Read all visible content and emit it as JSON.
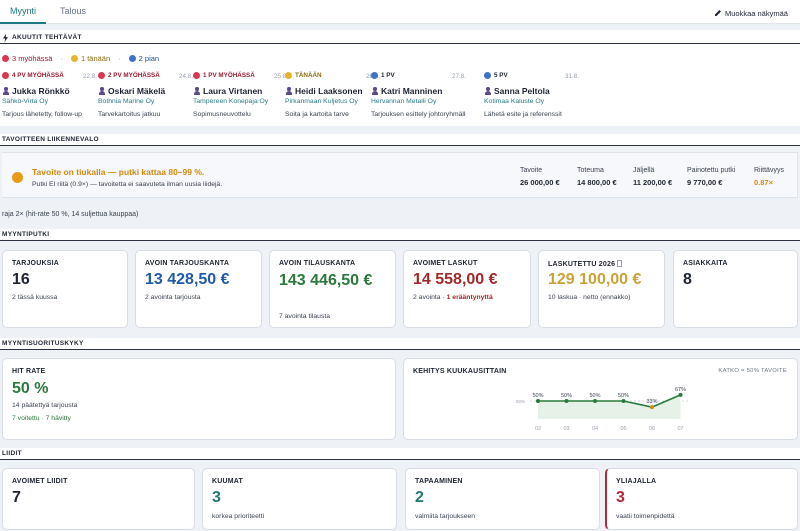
{
  "tabs": [
    {
      "label": "Myynti",
      "active": true
    },
    {
      "label": "Talous",
      "active": false
    }
  ],
  "edit_button": "Muokkaa näkymää",
  "urgent": {
    "title": "AKUUTIT TEHTÄVÄT",
    "legend": [
      {
        "text": "3 myöhässä",
        "color": "#d9364f"
      },
      {
        "text": "1 tänään",
        "color": "#e8b52a"
      },
      {
        "text": "2 pian",
        "color": "#3b73c7"
      }
    ],
    "tasks": [
      {
        "tag": "4 PV MYÖHÄSSÄ",
        "date": "22.8.",
        "name": "Jukka Rönkkö",
        "company": "Sähkö-Virta Oy",
        "note": "Tarjous lähetetty, follow-up",
        "color": "#d9364f",
        "tag_color": "#9a1a2e"
      },
      {
        "tag": "2 PV MYÖHÄSSÄ",
        "date": "24.8.",
        "name": "Oskari Mäkelä",
        "company": "Bothnia Marine Oy",
        "note": "Tarvekartoitus jatkuu",
        "color": "#d9364f",
        "tag_color": "#9a1a2e"
      },
      {
        "tag": "1 PV MYÖHÄSSÄ",
        "date": "25.8.",
        "name": "Laura Virtanen",
        "company": "Tampereen Konepaja Oy",
        "note": "Sopimusneuvottelu",
        "color": "#d9364f",
        "tag_color": "#9a1a2e"
      },
      {
        "tag": "TÄNÄÄN",
        "date": "26.8.",
        "name": "Heidi Laaksonen",
        "company": "Pirkanmaan Kuljetus Oy",
        "note": "Soita ja kartoita tarve",
        "color": "#e8b52a",
        "tag_color": "#8a6a10"
      },
      {
        "tag": "1 PV",
        "date": "27.8.",
        "name": "Katri Manninen",
        "company": "Hervannan Metalli Oy",
        "note": "Tarjouksen esittely johtoryhmälle",
        "color": "#3b73c7",
        "tag_color": "#1d2330"
      },
      {
        "tag": "5 PV",
        "date": "31.8.",
        "name": "Sanna Peltola",
        "company": "Kotimaa Kaluste Oy",
        "note": "Lähetä esite ja referenssit",
        "color": "#3b73c7",
        "tag_color": "#1d2330"
      }
    ]
  },
  "goal": {
    "title": "TAVOITTEEN LIIKENNEVALO",
    "status": "Tavoite on tiukalla — putki kattaa 80–99 %.",
    "detail": "Putki EI riitä (0.9×) — tavoitetta ei saavuteta ilman uusia liidejä.",
    "stats": [
      {
        "label": "Tavoite",
        "value": "26 000,00 €",
        "color": "#1d2330"
      },
      {
        "label": "Toteuma",
        "value": "14 800,00 €",
        "color": "#1d2330"
      },
      {
        "label": "Jäljellä",
        "value": "11 200,00 €",
        "color": "#1d2330"
      },
      {
        "label": "Painotettu putki",
        "value": "9 770,00 €",
        "color": "#1d2330"
      },
      {
        "label": "Riittävyys",
        "value": "0.87×",
        "color": "#d08a10"
      }
    ],
    "footnote": "raja 2× (hit-rate 50 %, 14 suljettua kauppaa)"
  },
  "pipeline": {
    "title": "MYYNTIPUTKI",
    "cards": [
      {
        "label": "TARJOUKSIA",
        "value": "16",
        "sub": "2 tässä kuussa",
        "color": "#1d2330"
      },
      {
        "label": "AVOIN TARJOUSKANTA",
        "value": "13 428,50 €",
        "sub": "2 avointa tarjousta",
        "color": "#1f5aa8"
      },
      {
        "label": "AVOIN TILAUSKANTA",
        "value": "143 446,50 €",
        "sub": "7 avointa tilausta",
        "color": "#2a7a3c"
      },
      {
        "label": "AVOIMET LASKUT",
        "value": "14 558,00 €",
        "sub": "2 avointa · ",
        "sub_alert": "1 erääntynyttä",
        "color": "#a02a2a"
      },
      {
        "label": "LASKUTETTU 2026",
        "value": "129 100,00 €",
        "sub": "10 laskua · netto (ennakko)",
        "color": "#c9a338"
      },
      {
        "label": "ASIAKKAITA",
        "value": "8",
        "sub": "",
        "color": "#1d2330"
      }
    ]
  },
  "performance": {
    "title": "MYYNTISUORITUSKYKY",
    "hit_rate": {
      "label": "HIT RATE",
      "value": "50 %",
      "sub1": "14 päätettyä tarjousta",
      "sub2": "7 voitettu · 7 hävitty"
    },
    "chart_title": "KEHITYS KUUKAUSITTAIN",
    "chart_note": "KATKO = 50% TAVOITE",
    "chart_data": {
      "type": "line",
      "categories": [
        "02",
        "03",
        "04",
        "05",
        "06",
        "07"
      ],
      "values": [
        50,
        50,
        50,
        50,
        33,
        67
      ],
      "labels": [
        "50%",
        "50%",
        "50%",
        "50%",
        "33%",
        "67%"
      ],
      "target": 50,
      "target_label": "50%",
      "ylim": [
        0,
        100
      ],
      "colors": {
        "line": "#2a7a3c",
        "low": "#d08a10"
      }
    }
  },
  "leads": {
    "title": "LIIDIT",
    "cards": [
      {
        "label": "AVOIMET LIIDIT",
        "value": "7",
        "sub": "",
        "color": "#1d2330"
      },
      {
        "label": "KUUMAT",
        "value": "3",
        "sub": "korkea prioriteetti",
        "color": "#1e7a70"
      },
      {
        "label": "TAPAAMINEN",
        "value": "2",
        "sub": "valmiita tarjoukseen",
        "color": "#1e7a70"
      },
      {
        "label": "YLIAJALLA",
        "value": "3",
        "sub": "vaatii toimenpidettä",
        "color": "#b0263a"
      }
    ]
  }
}
